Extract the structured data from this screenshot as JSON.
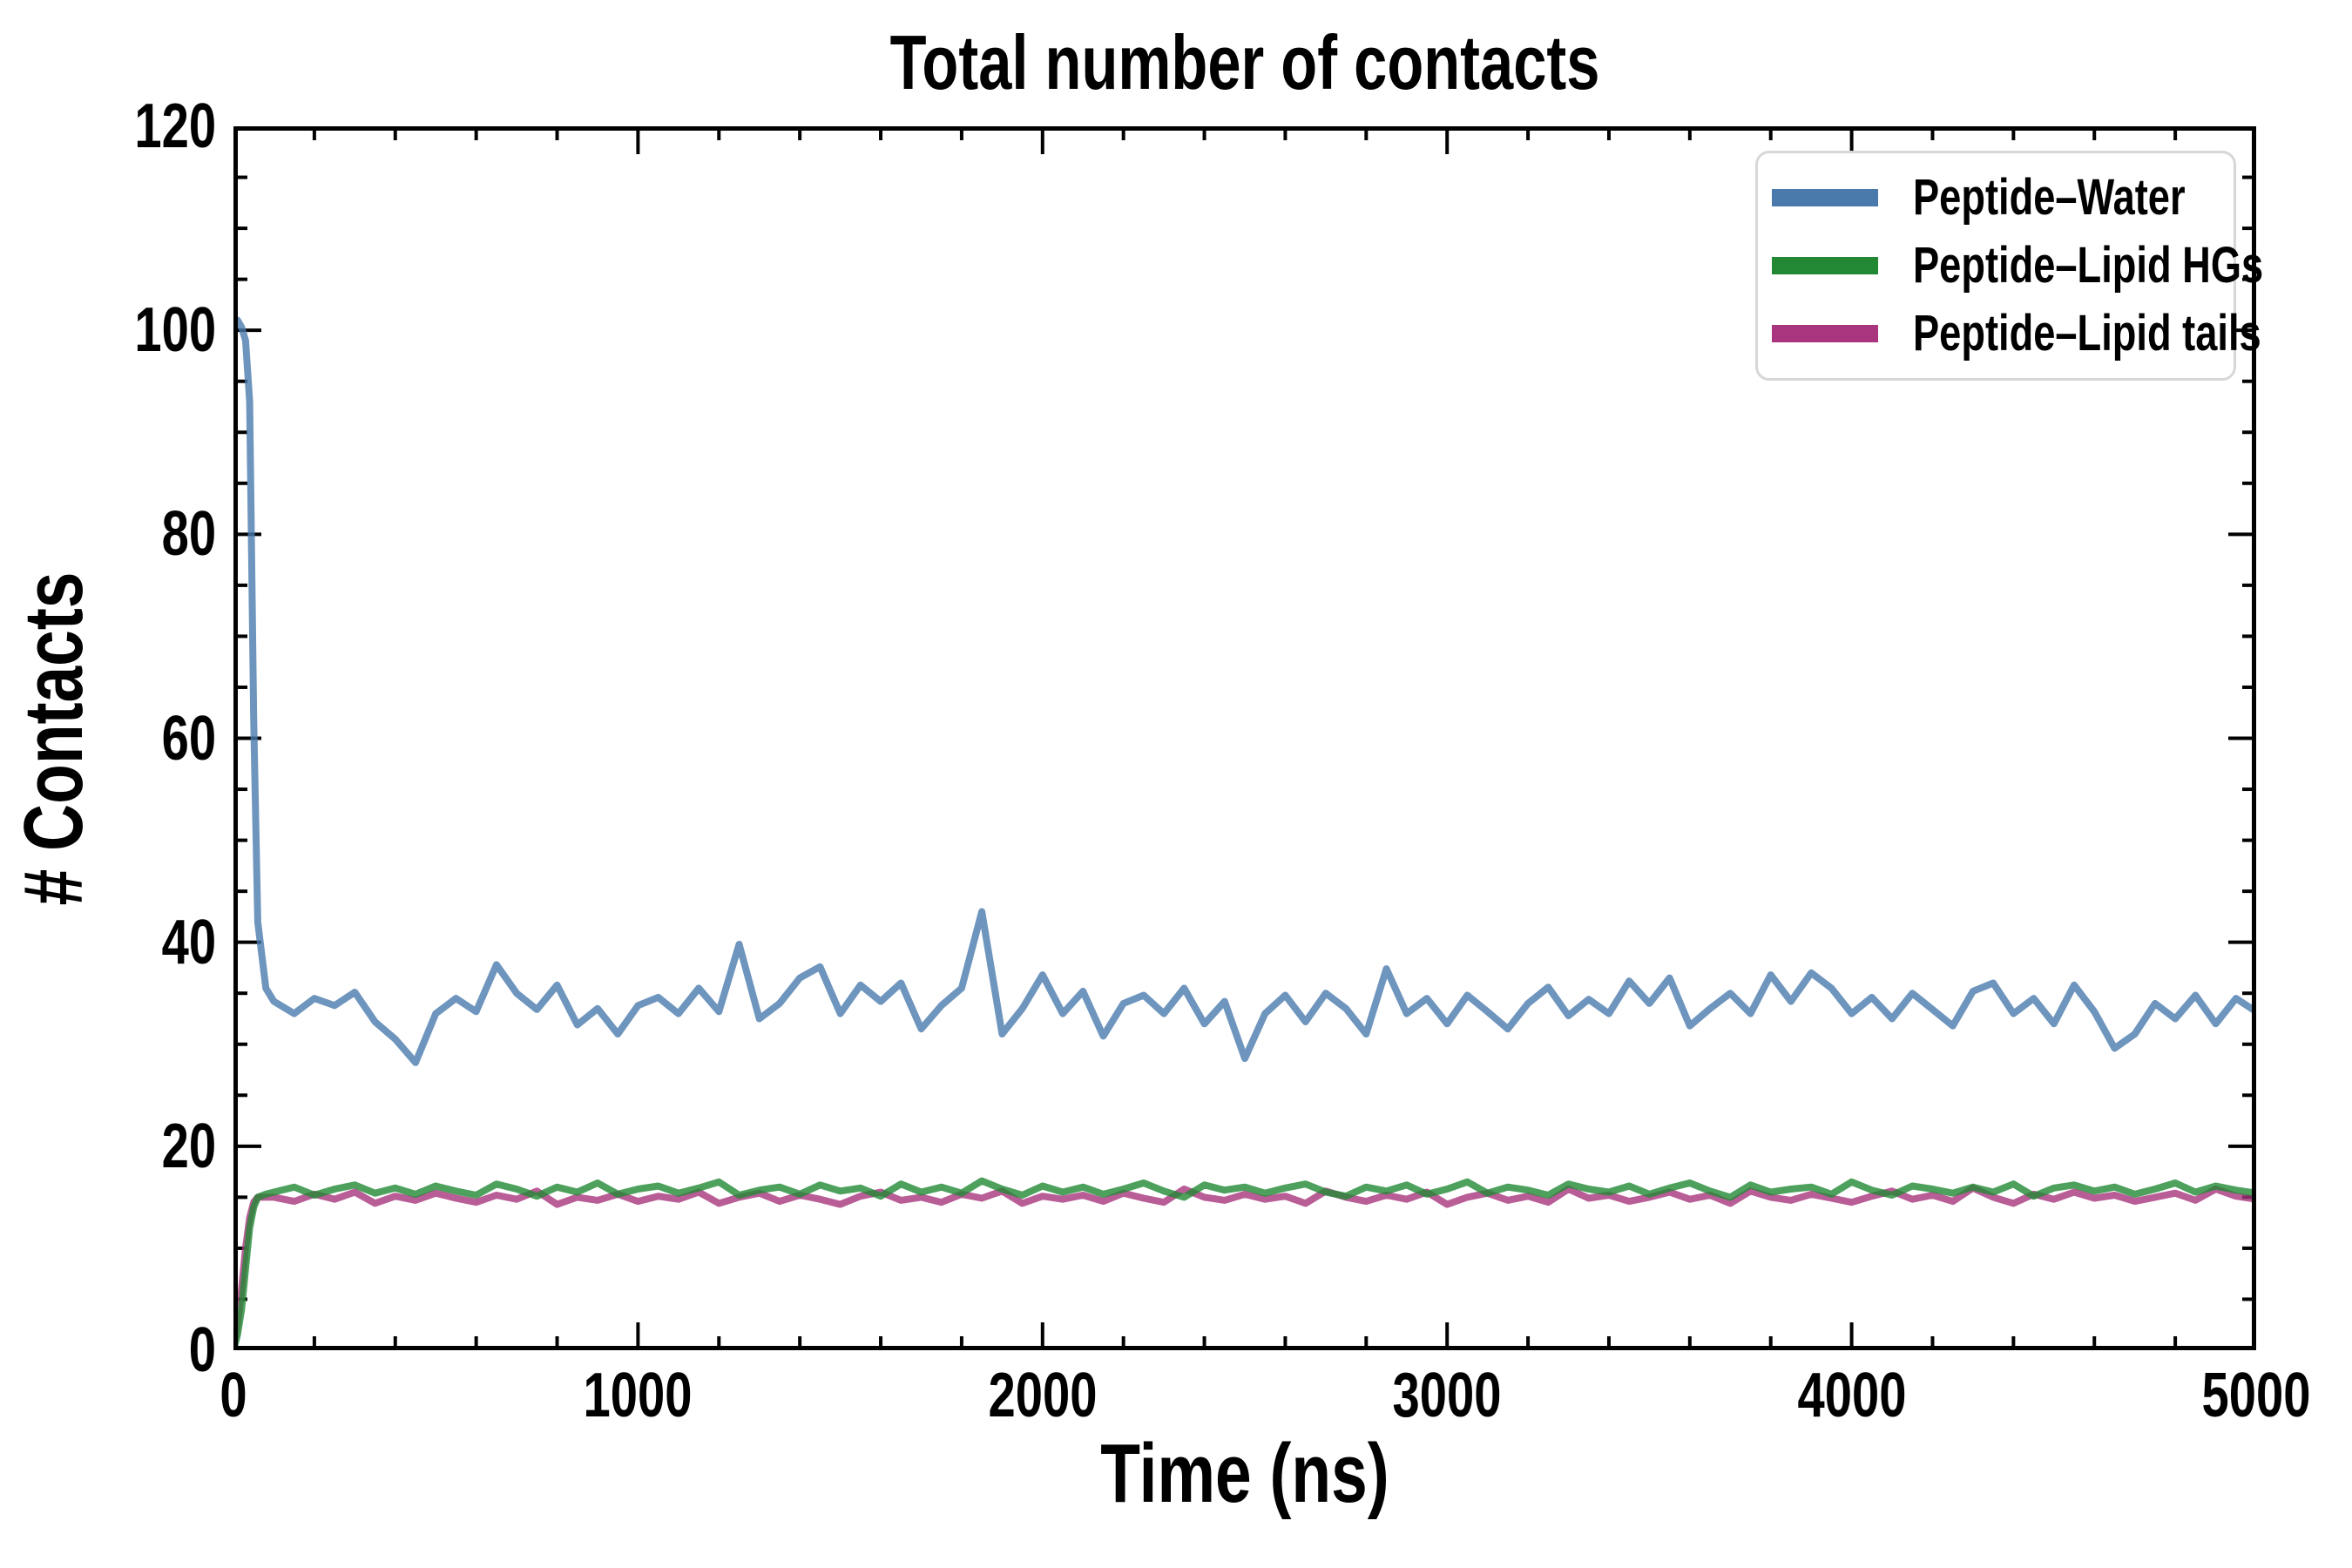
{
  "chart_data": {
    "type": "line",
    "title": "Total number of contacts",
    "xlabel": "Time (ns)",
    "ylabel": "# Contacts",
    "xlim": [
      0,
      5000
    ],
    "ylim": [
      0,
      120
    ],
    "x_major_ticks": [
      0,
      1000,
      2000,
      3000,
      4000,
      5000
    ],
    "x_minor_step": 200,
    "y_major_ticks": [
      0,
      20,
      40,
      60,
      80,
      100,
      120
    ],
    "y_minor_step": 5,
    "grid": false,
    "tick_direction": "in",
    "legend_position": "upper right",
    "line_width": 8,
    "line_alpha": 0.8,
    "x": [
      0,
      10,
      20,
      30,
      40,
      50,
      60,
      80,
      100,
      150,
      200,
      250,
      300,
      350,
      400,
      450,
      500,
      550,
      600,
      650,
      700,
      750,
      800,
      850,
      900,
      950,
      1000,
      1050,
      1100,
      1150,
      1200,
      1250,
      1300,
      1350,
      1400,
      1450,
      1500,
      1550,
      1600,
      1650,
      1700,
      1750,
      1800,
      1850,
      1900,
      1950,
      2000,
      2050,
      2100,
      2150,
      2200,
      2250,
      2300,
      2350,
      2400,
      2450,
      2500,
      2550,
      2600,
      2650,
      2700,
      2750,
      2800,
      2850,
      2900,
      2950,
      3000,
      3050,
      3100,
      3150,
      3200,
      3250,
      3300,
      3350,
      3400,
      3450,
      3500,
      3550,
      3600,
      3650,
      3700,
      3750,
      3800,
      3850,
      3900,
      3950,
      4000,
      4050,
      4100,
      4150,
      4200,
      4250,
      4300,
      4350,
      4400,
      4450,
      4500,
      4550,
      4600,
      4650,
      4700,
      4750,
      4800,
      4850,
      4900,
      4950,
      5000
    ],
    "series": [
      {
        "name": "Peptide–Water",
        "color": "#4a7aac",
        "values": [
          100,
          101,
          100.3,
          99,
          93,
          62,
          42,
          35.5,
          34.2,
          33,
          34.5,
          33.8,
          35.1,
          32.2,
          30.5,
          28.2,
          33,
          34.5,
          33.2,
          37.8,
          35,
          33.4,
          35.8,
          31.9,
          33.5,
          31,
          33.8,
          34.6,
          33,
          35.5,
          33.2,
          39.8,
          32.5,
          34,
          36.5,
          37.6,
          33,
          35.8,
          34.2,
          36,
          31.5,
          33.8,
          35.5,
          43,
          31,
          33.5,
          36.8,
          33,
          35.2,
          30.8,
          34,
          34.8,
          33,
          35.5,
          32,
          34.2,
          28.6,
          33,
          34.8,
          32.2,
          35,
          33.5,
          31,
          37.4,
          33,
          34.5,
          32,
          34.8,
          33.2,
          31.5,
          34,
          35.6,
          32.8,
          34.4,
          33,
          36.2,
          34,
          36.5,
          31.8,
          33.5,
          35,
          33,
          36.8,
          34.2,
          37,
          35.5,
          33,
          34.6,
          32.5,
          35,
          33.4,
          31.8,
          35.2,
          36,
          33,
          34.5,
          32,
          35.8,
          33.2,
          29.6,
          31,
          34,
          32.5,
          34.8,
          32,
          34.5,
          33.2
        ]
      },
      {
        "name": "Peptide–Lipid HGs",
        "color": "#228834",
        "values": [
          0,
          1.5,
          4,
          8,
          12,
          14,
          15,
          15.3,
          15.5,
          16,
          15.2,
          15.8,
          16.2,
          15.4,
          15.9,
          15.3,
          16.1,
          15.6,
          15.2,
          16.3,
          15.8,
          15.1,
          16,
          15.5,
          16.4,
          15.3,
          15.8,
          16.1,
          15.4,
          15.9,
          16.5,
          15.2,
          15.7,
          16,
          15.3,
          16.2,
          15.6,
          15.9,
          15.1,
          16.3,
          15.5,
          16,
          15.4,
          16.6,
          15.8,
          15.2,
          16.1,
          15.5,
          16,
          15.3,
          15.8,
          16.4,
          15.6,
          15,
          16.2,
          15.7,
          16,
          15.4,
          15.9,
          16.3,
          15.5,
          15.1,
          16,
          15.6,
          16.2,
          15.3,
          15.8,
          16.5,
          15.4,
          16,
          15.7,
          15.2,
          16.3,
          15.8,
          15.5,
          16.1,
          15.3,
          15.9,
          16.4,
          15.6,
          15,
          16.2,
          15.5,
          15.8,
          16,
          15.3,
          16.5,
          15.7,
          15.2,
          16.1,
          15.8,
          15.4,
          16,
          15.5,
          16.3,
          15.1,
          15.9,
          16.2,
          15.6,
          16,
          15.3,
          15.8,
          16.4,
          15.5,
          16.1,
          15.7,
          15.4
        ]
      },
      {
        "name": "Peptide–Lipid tails",
        "color": "#a8357d",
        "values": [
          0,
          2.5,
          6,
          10,
          13,
          14.5,
          15,
          15,
          15,
          14.6,
          15.3,
          14.8,
          15.5,
          14.4,
          15.1,
          14.7,
          15.4,
          14.9,
          14.5,
          15.2,
          14.8,
          15.6,
          14.3,
          15,
          14.7,
          15.3,
          14.6,
          15.1,
          14.8,
          15.5,
          14.4,
          15,
          15.4,
          14.6,
          15.2,
          14.8,
          14.3,
          15.1,
          15.5,
          14.7,
          15,
          14.5,
          15.3,
          14.9,
          15.6,
          14.4,
          15.1,
          14.8,
          15.2,
          14.6,
          15.4,
          14.9,
          14.5,
          15.8,
          15,
          14.7,
          15.3,
          14.8,
          15.1,
          14.4,
          15.6,
          15,
          14.6,
          15.2,
          14.8,
          15.5,
          14.3,
          15,
          15.4,
          14.7,
          15.1,
          14.5,
          15.8,
          14.9,
          15.2,
          14.6,
          15,
          15.5,
          14.8,
          15.2,
          14.4,
          15.6,
          15,
          14.7,
          15.3,
          14.9,
          14.5,
          15.1,
          15.6,
          14.8,
          15.2,
          14.6,
          15.9,
          15,
          14.4,
          15.3,
          14.8,
          15.5,
          14.9,
          15.2,
          14.6,
          15,
          15.4,
          14.7,
          15.8,
          15.1,
          14.8
        ]
      }
    ]
  }
}
